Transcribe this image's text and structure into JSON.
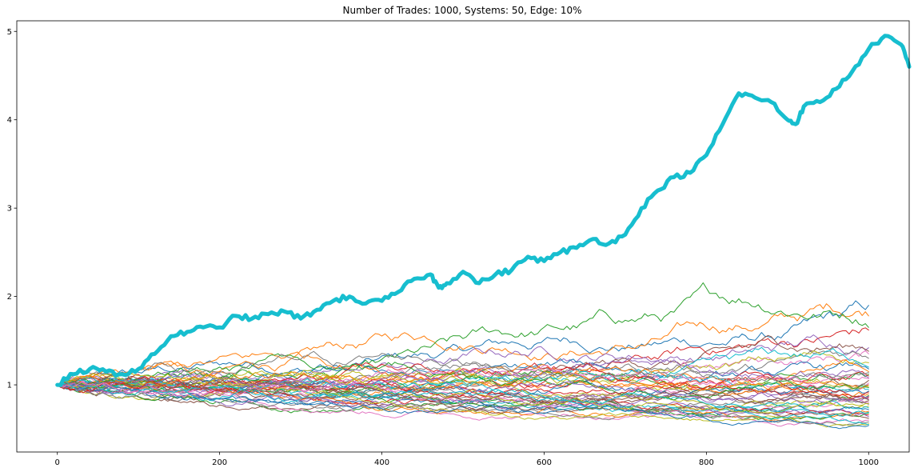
{
  "chart_data": {
    "type": "line",
    "title": "Number of Trades: 1000, Systems: 50, Edge: 10%",
    "xlabel": "",
    "ylabel": "",
    "xlim": [
      -50,
      1050
    ],
    "ylim": [
      0.24,
      5.12
    ],
    "xticks": [
      0,
      200,
      400,
      600,
      800,
      1000
    ],
    "yticks": [
      1,
      2,
      3,
      4,
      5
    ],
    "grid": false,
    "legend": "none",
    "highlight_series": {
      "color": "#17becf",
      "points": [
        [
          0,
          1.0
        ],
        [
          20,
          1.12
        ],
        [
          40,
          1.18
        ],
        [
          60,
          1.15
        ],
        [
          80,
          1.12
        ],
        [
          100,
          1.18
        ],
        [
          120,
          1.35
        ],
        [
          140,
          1.55
        ],
        [
          160,
          1.6
        ],
        [
          180,
          1.65
        ],
        [
          200,
          1.65
        ],
        [
          220,
          1.78
        ],
        [
          240,
          1.75
        ],
        [
          260,
          1.8
        ],
        [
          280,
          1.83
        ],
        [
          300,
          1.75
        ],
        [
          320,
          1.85
        ],
        [
          340,
          1.95
        ],
        [
          360,
          2.0
        ],
        [
          380,
          1.92
        ],
        [
          400,
          1.95
        ],
        [
          420,
          2.05
        ],
        [
          440,
          2.2
        ],
        [
          460,
          2.25
        ],
        [
          470,
          2.1
        ],
        [
          480,
          2.15
        ],
        [
          500,
          2.28
        ],
        [
          520,
          2.15
        ],
        [
          540,
          2.25
        ],
        [
          560,
          2.3
        ],
        [
          580,
          2.45
        ],
        [
          600,
          2.4
        ],
        [
          620,
          2.5
        ],
        [
          640,
          2.55
        ],
        [
          660,
          2.65
        ],
        [
          680,
          2.6
        ],
        [
          700,
          2.7
        ],
        [
          720,
          3.0
        ],
        [
          740,
          3.2
        ],
        [
          760,
          3.35
        ],
        [
          780,
          3.4
        ],
        [
          800,
          3.6
        ],
        [
          820,
          3.95
        ],
        [
          840,
          4.3
        ],
        [
          860,
          4.25
        ],
        [
          880,
          4.2
        ],
        [
          900,
          4.0
        ],
        [
          910,
          3.95
        ],
        [
          920,
          4.15
        ],
        [
          940,
          4.2
        ],
        [
          960,
          4.35
        ],
        [
          980,
          4.55
        ],
        [
          1000,
          4.8
        ],
        [
          1020,
          4.95
        ],
        [
          1040,
          4.85
        ],
        [
          1050,
          4.6
        ]
      ]
    },
    "series_summary": {
      "count": 50,
      "start_value": 1.0,
      "end_values": [
        1.9,
        1.78,
        1.65,
        1.62,
        1.42,
        1.38,
        1.35,
        1.3,
        1.25,
        1.2,
        1.18,
        1.15,
        1.12,
        1.1,
        1.08,
        1.05,
        1.02,
        1.0,
        0.98,
        0.95,
        0.93,
        0.9,
        0.88,
        0.86,
        0.84,
        0.82,
        0.8,
        0.78,
        0.76,
        0.74,
        0.72,
        0.7,
        0.68,
        0.66,
        0.64,
        0.62,
        0.6,
        0.58,
        0.56,
        0.55,
        0.54,
        1.0,
        0.97,
        0.92,
        0.87,
        0.83,
        1.07,
        1.14,
        0.79,
        0.69
      ]
    },
    "palette": [
      "#1f77b4",
      "#ff7f0e",
      "#2ca02c",
      "#d62728",
      "#9467bd",
      "#8c564b",
      "#e377c2",
      "#7f7f7f",
      "#bcbd22",
      "#17becf"
    ]
  }
}
